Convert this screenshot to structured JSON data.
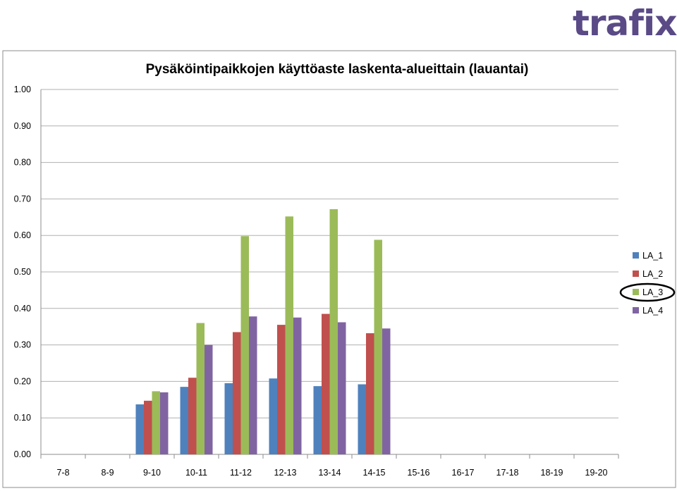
{
  "logo": {
    "text": "trafix",
    "color": "#5a4a86"
  },
  "chart_data": {
    "type": "bar",
    "title": "Pysäköintipaikkojen käyttöaste laskenta-alueittain (lauantai)",
    "xlabel": "",
    "ylabel": "",
    "ylim": [
      0,
      1
    ],
    "yticks": [
      "0.00",
      "0.10",
      "0.20",
      "0.30",
      "0.40",
      "0.50",
      "0.60",
      "0.70",
      "0.80",
      "0.90",
      "1.00"
    ],
    "categories": [
      "7-8",
      "8-9",
      "9-10",
      "10-11",
      "11-12",
      "12-13",
      "13-14",
      "14-15",
      "15-16",
      "16-17",
      "17-18",
      "18-19",
      "19-20"
    ],
    "series": [
      {
        "name": "LA_1",
        "color": "#4f81bd",
        "values": [
          null,
          null,
          0.137,
          0.185,
          0.195,
          0.208,
          0.187,
          0.192,
          null,
          null,
          null,
          null,
          null
        ]
      },
      {
        "name": "LA_2",
        "color": "#c0504d",
        "values": [
          null,
          null,
          0.147,
          0.21,
          0.335,
          0.355,
          0.385,
          0.332,
          null,
          null,
          null,
          null,
          null
        ]
      },
      {
        "name": "LA_3",
        "color": "#9bbb59",
        "values": [
          null,
          null,
          0.173,
          0.36,
          0.598,
          0.652,
          0.672,
          0.588,
          null,
          null,
          null,
          null,
          null
        ]
      },
      {
        "name": "LA_4",
        "color": "#8064a2",
        "values": [
          null,
          null,
          0.17,
          0.3,
          0.378,
          0.375,
          0.362,
          0.345,
          null,
          null,
          null,
          null,
          null
        ]
      }
    ],
    "grid": true,
    "legend_position": "right",
    "highlighted_legend_entry": "LA_3"
  }
}
